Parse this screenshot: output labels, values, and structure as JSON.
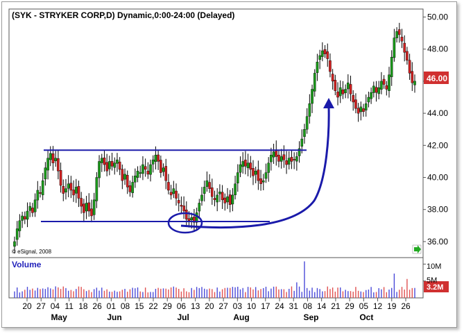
{
  "chart_data": {
    "type": "candlestick",
    "title": "(SYK - STRYKER CORP,D) Dynamic,0:00-24:00 (Delayed)",
    "copyright": "© eSignal, 2008",
    "price_axis": {
      "min": 35.0,
      "max": 50.5,
      "ticks": [
        "36.00",
        "38.00",
        "40.00",
        "42.00",
        "44.00",
        "46.00",
        "48.00",
        "50.00"
      ]
    },
    "last_price": {
      "label": "46.00",
      "value": 46.0,
      "color": "#d03030"
    },
    "volume_panel": {
      "label": "Volume",
      "ticks": [
        "10M",
        "5M"
      ],
      "last_volume": "3.2M",
      "max_millions": 11.5
    },
    "x_day_labels": [
      "20",
      "27",
      "04",
      "11",
      "18",
      "26",
      "01",
      "08",
      "15",
      "22",
      "29",
      "06",
      "13",
      "20",
      "27",
      "03",
      "10",
      "17",
      "24",
      "31",
      "08",
      "14",
      "21",
      "29",
      "05",
      "12",
      "19",
      "26"
    ],
    "x_month_labels": [
      "May",
      "Jun",
      "Jul",
      "Aug",
      "Sep",
      "Oct"
    ],
    "annotations": {
      "resistance": 41.7,
      "support": 37.25
    },
    "colors": {
      "up": "#1a9a1a",
      "down": "#d02020",
      "annotation": "#1a1aaa",
      "vol_up": "#4a4ad8",
      "vol_down": "#e05050"
    },
    "closes": [
      36.0,
      36.8,
      37.3,
      37.6,
      37.4,
      37.9,
      38.2,
      37.8,
      38.6,
      39.2,
      39.0,
      39.8,
      40.6,
      41.2,
      41.5,
      40.9,
      41.2,
      40.4,
      39.5,
      39.0,
      39.3,
      39.6,
      39.2,
      38.9,
      39.4,
      38.7,
      38.2,
      37.8,
      38.4,
      37.9,
      37.6,
      38.6,
      40.0,
      41.0,
      41.2,
      40.8,
      40.4,
      41.0,
      40.7,
      40.9,
      41.1,
      40.5,
      39.8,
      40.2,
      39.4,
      39.1,
      39.7,
      40.1,
      40.4,
      40.3,
      40.8,
      40.5,
      40.2,
      40.8,
      41.1,
      41.4,
      41.0,
      40.3,
      40.6,
      39.8,
      39.2,
      38.9,
      39.3,
      38.7,
      38.4,
      38.2,
      37.9,
      37.4,
      37.3,
      37.5,
      37.2,
      37.8,
      38.4,
      38.9,
      39.4,
      39.8,
      39.3,
      38.8,
      38.6,
      38.9,
      39.1,
      38.6,
      38.4,
      38.8,
      38.3,
      38.9,
      39.6,
      40.3,
      40.8,
      41.0,
      40.7,
      40.9,
      40.5,
      40.1,
      40.4,
      39.8,
      39.6,
      39.8,
      40.3,
      40.9,
      41.4,
      41.6,
      41.3,
      41.0,
      41.3,
      41.1,
      40.8,
      41.2,
      41.0,
      41.1,
      41.3,
      41.8,
      42.4,
      43.0,
      43.8,
      44.6,
      45.5,
      46.5,
      47.2,
      47.6,
      47.9,
      47.7,
      47.4,
      46.6,
      46.0,
      45.4,
      45.0,
      45.6,
      45.2,
      45.5,
      45.9,
      45.2,
      44.7,
      44.3,
      44.0,
      44.4,
      44.1,
      44.6,
      45.0,
      45.3,
      45.7,
      45.3,
      45.6,
      46.0,
      45.8,
      45.5,
      46.4,
      47.5,
      48.7,
      49.1,
      48.9,
      48.5,
      47.8,
      47.3,
      46.5,
      45.9,
      46.0
    ]
  }
}
